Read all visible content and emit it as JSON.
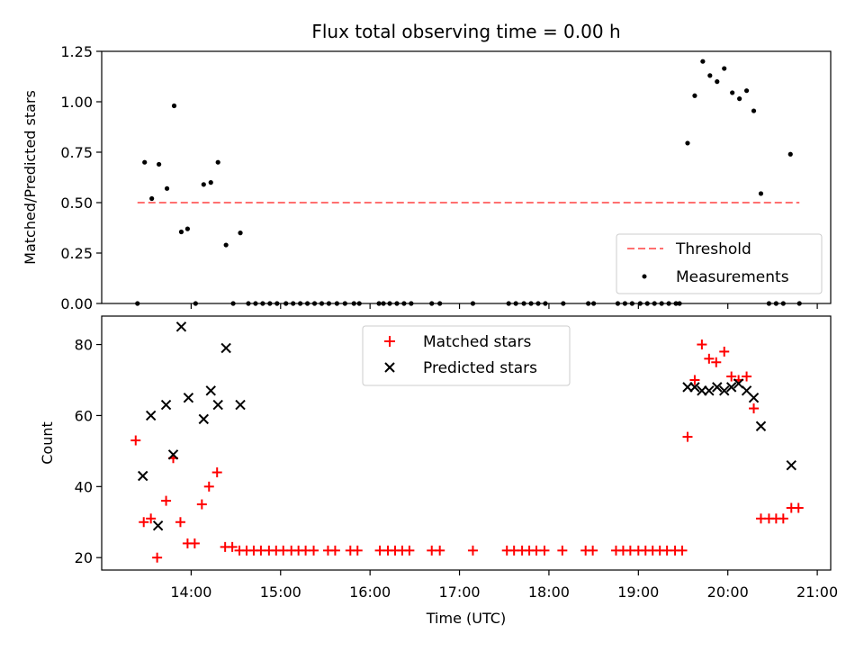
{
  "chart_data": [
    {
      "type": "scatter",
      "title": "Flux total observing time = 0.00 h",
      "ylabel": "Matched/Predicted stars",
      "xlabel": "",
      "ylim": [
        0,
        1.25
      ],
      "yticks": [
        "0.00",
        "0.25",
        "0.50",
        "0.75",
        "1.00",
        "1.25"
      ],
      "threshold": {
        "name": "Threshold",
        "value": 0.5,
        "x_range": [
          13.4,
          20.8
        ],
        "color": "#ff7070"
      },
      "legend": {
        "position": "lower-right",
        "entries": [
          "Threshold",
          "Measurements"
        ]
      },
      "series": [
        {
          "name": "Measurements",
          "color": "#000000",
          "points": [
            [
              13.4,
              0
            ],
            [
              13.48,
              0.7
            ],
            [
              13.56,
              0.52
            ],
            [
              13.64,
              0.69
            ],
            [
              13.73,
              0.57
            ],
            [
              13.81,
              0.98
            ],
            [
              13.89,
              0.355
            ],
            [
              13.96,
              0.37
            ],
            [
              14.05,
              0
            ],
            [
              14.14,
              0.59
            ],
            [
              14.22,
              0.6
            ],
            [
              14.3,
              0.7
            ],
            [
              14.39,
              0.29
            ],
            [
              14.47,
              0
            ],
            [
              14.55,
              0.35
            ],
            [
              14.64,
              0
            ],
            [
              14.72,
              0
            ],
            [
              14.8,
              0
            ],
            [
              14.88,
              0
            ],
            [
              14.96,
              0
            ],
            [
              15.06,
              0
            ],
            [
              15.14,
              0
            ],
            [
              15.22,
              0
            ],
            [
              15.3,
              0
            ],
            [
              15.38,
              0
            ],
            [
              15.46,
              0
            ],
            [
              15.54,
              0
            ],
            [
              15.63,
              0
            ],
            [
              15.72,
              0
            ],
            [
              15.82,
              0
            ],
            [
              15.88,
              0
            ],
            [
              16.1,
              0
            ],
            [
              16.15,
              0
            ],
            [
              16.22,
              0
            ],
            [
              16.3,
              0
            ],
            [
              16.38,
              0
            ],
            [
              16.46,
              0
            ],
            [
              16.69,
              0
            ],
            [
              16.78,
              0
            ],
            [
              17.15,
              0
            ],
            [
              17.55,
              0
            ],
            [
              17.63,
              0
            ],
            [
              17.72,
              0
            ],
            [
              17.8,
              0
            ],
            [
              17.88,
              0
            ],
            [
              17.96,
              0
            ],
            [
              18.16,
              0
            ],
            [
              18.44,
              0
            ],
            [
              18.5,
              0
            ],
            [
              18.77,
              0
            ],
            [
              18.85,
              0
            ],
            [
              18.93,
              0
            ],
            [
              19.02,
              0
            ],
            [
              19.1,
              0
            ],
            [
              19.18,
              0
            ],
            [
              19.26,
              0
            ],
            [
              19.34,
              0
            ],
            [
              19.42,
              0
            ],
            [
              19.46,
              0
            ],
            [
              19.55,
              0.795
            ],
            [
              19.63,
              1.03
            ],
            [
              19.72,
              1.2
            ],
            [
              19.8,
              1.13
            ],
            [
              19.88,
              1.1
            ],
            [
              19.96,
              1.165
            ],
            [
              20.05,
              1.045
            ],
            [
              20.13,
              1.015
            ],
            [
              20.21,
              1.055
            ],
            [
              20.29,
              0.955
            ],
            [
              20.37,
              0.545
            ],
            [
              20.46,
              0
            ],
            [
              20.54,
              0
            ],
            [
              20.62,
              0
            ],
            [
              20.7,
              0.74
            ],
            [
              20.8,
              0
            ]
          ]
        }
      ]
    },
    {
      "type": "scatter",
      "title": "",
      "ylabel": "Count",
      "xlabel": "Time (UTC)",
      "ylim": [
        16.5,
        88
      ],
      "yticks": [
        "20",
        "40",
        "60",
        "80"
      ],
      "xlim": [
        13.0,
        21.15
      ],
      "xticks": [
        "14:00",
        "15:00",
        "16:00",
        "17:00",
        "18:00",
        "19:00",
        "20:00",
        "21:00"
      ],
      "legend": {
        "position": "upper-center",
        "entries": [
          "Matched stars",
          "Predicted stars"
        ]
      },
      "series": [
        {
          "name": "Matched stars",
          "color": "#ff0000",
          "points": [
            [
              13.38,
              53
            ],
            [
              13.47,
              30
            ],
            [
              13.55,
              31
            ],
            [
              13.62,
              20
            ],
            [
              13.72,
              36
            ],
            [
              13.8,
              48
            ],
            [
              13.88,
              30
            ],
            [
              13.96,
              24
            ],
            [
              14.04,
              24
            ],
            [
              14.12,
              35
            ],
            [
              14.2,
              40
            ],
            [
              14.29,
              44
            ],
            [
              14.38,
              23
            ],
            [
              14.46,
              23
            ],
            [
              14.54,
              22
            ],
            [
              14.62,
              22
            ],
            [
              14.7,
              22
            ],
            [
              14.78,
              22
            ],
            [
              14.87,
              22
            ],
            [
              14.95,
              22
            ],
            [
              15.03,
              22
            ],
            [
              15.12,
              22
            ],
            [
              15.2,
              22
            ],
            [
              15.28,
              22
            ],
            [
              15.37,
              22
            ],
            [
              15.53,
              22
            ],
            [
              15.61,
              22
            ],
            [
              15.78,
              22
            ],
            [
              15.86,
              22
            ],
            [
              16.11,
              22
            ],
            [
              16.2,
              22
            ],
            [
              16.28,
              22
            ],
            [
              16.36,
              22
            ],
            [
              16.44,
              22
            ],
            [
              16.69,
              22
            ],
            [
              16.78,
              22
            ],
            [
              17.15,
              22
            ],
            [
              17.53,
              22
            ],
            [
              17.61,
              22
            ],
            [
              17.7,
              22
            ],
            [
              17.78,
              22
            ],
            [
              17.86,
              22
            ],
            [
              17.95,
              22
            ],
            [
              18.15,
              22
            ],
            [
              18.41,
              22
            ],
            [
              18.49,
              22
            ],
            [
              18.75,
              22
            ],
            [
              18.83,
              22
            ],
            [
              18.91,
              22
            ],
            [
              19.0,
              22
            ],
            [
              19.08,
              22
            ],
            [
              19.16,
              22
            ],
            [
              19.24,
              22
            ],
            [
              19.32,
              22
            ],
            [
              19.41,
              22
            ],
            [
              19.49,
              22
            ],
            [
              19.55,
              54
            ],
            [
              19.63,
              70
            ],
            [
              19.71,
              80
            ],
            [
              19.79,
              76
            ],
            [
              19.87,
              75
            ],
            [
              19.96,
              78
            ],
            [
              20.04,
              71
            ],
            [
              20.12,
              70
            ],
            [
              20.21,
              71
            ],
            [
              20.29,
              62
            ],
            [
              20.37,
              31
            ],
            [
              20.46,
              31
            ],
            [
              20.54,
              31
            ],
            [
              20.62,
              31
            ],
            [
              20.71,
              34
            ],
            [
              20.79,
              34
            ]
          ]
        },
        {
          "name": "Predicted stars",
          "color": "#000000",
          "points": [
            [
              13.46,
              43
            ],
            [
              13.55,
              60
            ],
            [
              13.63,
              29
            ],
            [
              13.72,
              63
            ],
            [
              13.8,
              49
            ],
            [
              13.89,
              85
            ],
            [
              13.97,
              65
            ],
            [
              14.14,
              59
            ],
            [
              14.22,
              67
            ],
            [
              14.3,
              63
            ],
            [
              14.39,
              79
            ],
            [
              14.55,
              63
            ],
            [
              19.55,
              68
            ],
            [
              19.63,
              68
            ],
            [
              19.71,
              67
            ],
            [
              19.79,
              67
            ],
            [
              19.88,
              68
            ],
            [
              19.96,
              67
            ],
            [
              20.04,
              68
            ],
            [
              20.12,
              69
            ],
            [
              20.21,
              67
            ],
            [
              20.29,
              65
            ],
            [
              20.37,
              57
            ],
            [
              20.71,
              46
            ]
          ]
        }
      ]
    }
  ]
}
